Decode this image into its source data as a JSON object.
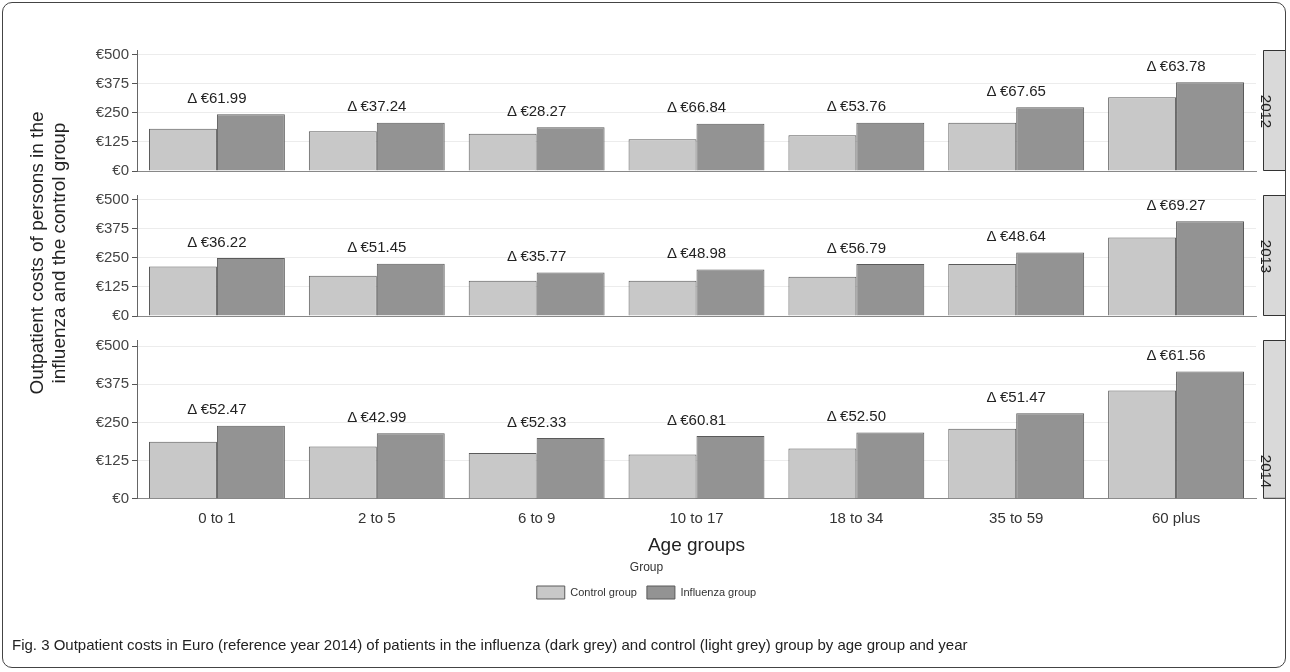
{
  "chart_data": [
    {
      "type": "bar",
      "title": "2012",
      "categories": [
        "0 to 1",
        "2 to 5",
        "6 to 9",
        "10 to 17",
        "18 to 34",
        "35 to 59",
        "60 plus"
      ],
      "series": [
        {
          "color": "#c8c8c8",
          "values": [
            182,
            171,
            160,
            136,
            154,
            207,
            317
          ]
        },
        {
          "color": "#939393",
          "values": [
            244,
            207,
            188,
            203,
            207,
            274,
            381
          ]
        }
      ],
      "ylim": [
        0,
        520
      ],
      "yticks": [
        {
          "value": 0,
          "label": "€0"
        },
        {
          "value": 125,
          "label": "€125"
        },
        {
          "value": 250,
          "label": "€250"
        },
        {
          "value": 375,
          "label": "€375"
        },
        {
          "value": 500,
          "label": "€500"
        }
      ],
      "annotations": [
        {
          "text": "Δ €61.99",
          "x": "0 to 1",
          "y": 244
        },
        {
          "text": "Δ €37.24",
          "x": "2 to 5",
          "y": 207
        },
        {
          "text": "Δ €28.27",
          "x": "6 to 9",
          "y": 188
        },
        {
          "text": "Δ €66.84",
          "x": "10 to 17",
          "y": 203
        },
        {
          "text": "Δ €53.76",
          "x": "18 to 34",
          "y": 207
        },
        {
          "text": "Δ €67.65",
          "x": "35 to 59",
          "y": 274
        },
        {
          "text": "Δ €63.78",
          "x": "60 plus",
          "y": 381
        }
      ],
      "grid": "y",
      "tick_labels": "y",
      "legend": false
    },
    {
      "type": "bar",
      "title": "2013",
      "ylabel": "Outpatient costs of persons in the influenza and the control group",
      "categories": [
        "0 to 1",
        "2 to 5",
        "6 to 9",
        "10 to 17",
        "18 to 34",
        "35 to 59",
        "60 plus"
      ],
      "series": [
        {
          "color": "#c8c8c8",
          "values": [
            213,
            173,
            151,
            151,
            169,
            224,
            337
          ]
        },
        {
          "color": "#939393",
          "values": [
            249,
            225,
            187,
            200,
            224,
            273,
            407
          ]
        }
      ],
      "ylim": [
        0,
        520
      ],
      "yticks": [
        {
          "value": 0,
          "label": "€0"
        },
        {
          "value": 125,
          "label": "€125"
        },
        {
          "value": 250,
          "label": "€250"
        },
        {
          "value": 375,
          "label": "€375"
        },
        {
          "value": 500,
          "label": "€500"
        }
      ],
      "annotations": [
        {
          "text": "Δ €36.22",
          "x": "0 to 1",
          "y": 249
        },
        {
          "text": "Δ €51.45",
          "x": "2 to 5",
          "y": 225
        },
        {
          "text": "Δ €35.77",
          "x": "6 to 9",
          "y": 187
        },
        {
          "text": "Δ €48.98",
          "x": "10 to 17",
          "y": 200
        },
        {
          "text": "Δ €56.79",
          "x": "18 to 34",
          "y": 224
        },
        {
          "text": "Δ €48.64",
          "x": "35 to 59",
          "y": 273
        },
        {
          "text": "Δ €69.27",
          "x": "60 plus",
          "y": 407
        }
      ],
      "grid": "y",
      "tick_labels": "y",
      "legend": false
    },
    {
      "type": "bar",
      "title": "2014",
      "xlabel": "Age groups",
      "legend_title": "Group",
      "categories": [
        "0 to 1",
        "2 to 5",
        "6 to 9",
        "10 to 17",
        "18 to 34",
        "35 to 59",
        "60 plus"
      ],
      "series": [
        {
          "name": "Control group",
          "color": "#c8c8c8",
          "values": [
            187,
            171,
            150,
            145,
            165,
            229,
            355
          ]
        },
        {
          "name": "Influenza group",
          "color": "#939393",
          "values": [
            239,
            215,
            199,
            206,
            217,
            280,
            417
          ]
        }
      ],
      "ylim": [
        0,
        520
      ],
      "yticks": [
        {
          "value": 0,
          "label": "€0"
        },
        {
          "value": 125,
          "label": "€125"
        },
        {
          "value": 250,
          "label": "€250"
        },
        {
          "value": 375,
          "label": "€375"
        },
        {
          "value": 500,
          "label": "€500"
        }
      ],
      "annotations": [
        {
          "text": "Δ €52.47",
          "x": "0 to 1",
          "y": 239
        },
        {
          "text": "Δ €42.99",
          "x": "2 to 5",
          "y": 215
        },
        {
          "text": "Δ €52.33",
          "x": "6 to 9",
          "y": 199
        },
        {
          "text": "Δ €60.81",
          "x": "10 to 17",
          "y": 206
        },
        {
          "text": "Δ €52.50",
          "x": "18 to 34",
          "y": 217
        },
        {
          "text": "Δ €51.47",
          "x": "35 to 59",
          "y": 280
        },
        {
          "text": "Δ €61.56",
          "x": "60 plus",
          "y": 417
        },
        "Fig. 3 Outpatient costs in Euro (reference year 2014) of patients in the influenza (dark grey) and control (light grey) group by age group and year"
      ],
      "grid": "y",
      "legend": "bottom"
    }
  ]
}
